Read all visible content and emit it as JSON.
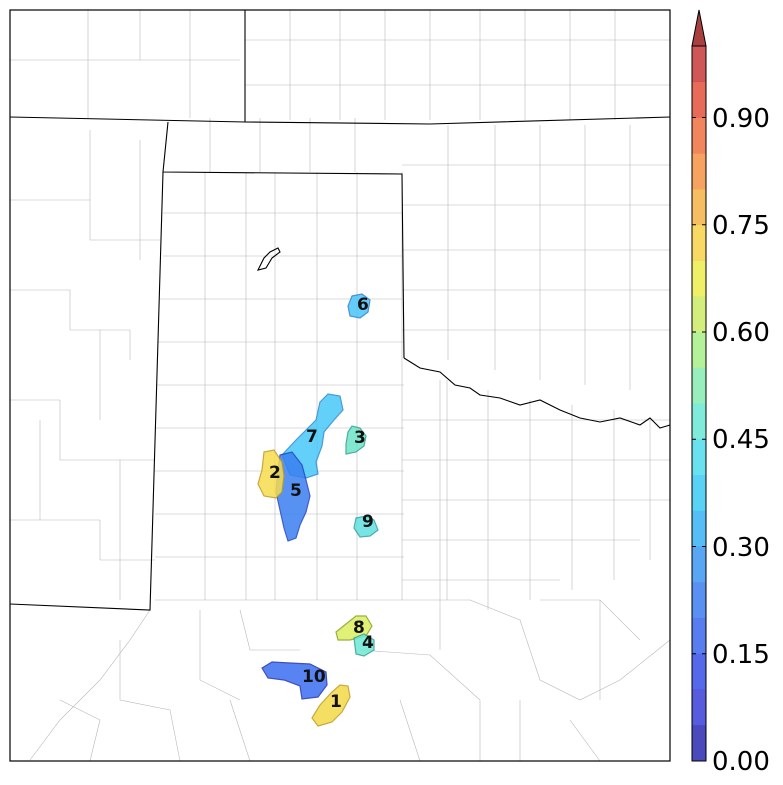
{
  "colorbar": {
    "ticks": [
      "0.00",
      "0.15",
      "0.30",
      "0.45",
      "0.60",
      "0.75",
      "0.90"
    ],
    "tick_values": [
      0.0,
      0.15,
      0.3,
      0.45,
      0.6,
      0.75,
      0.9
    ],
    "min": 0.0,
    "max": 1.0,
    "extend": "max",
    "levels": 20,
    "colors": [
      "#2a2ab0",
      "#3a3ed8",
      "#3650e8",
      "#3a66ec",
      "#3c7cf0",
      "#3c96f2",
      "#38b2f4",
      "#3ccaf4",
      "#50dcec",
      "#6ae8d4",
      "#86ecb2",
      "#a8ee86",
      "#cceb66",
      "#ecec4e",
      "#f6d248",
      "#f6b246",
      "#f49244",
      "#ee7040",
      "#e4503c",
      "#c83a3a"
    ],
    "arrow_color": "#a84040"
  },
  "objects": [
    {
      "id": "1",
      "value": 0.66
    },
    {
      "id": "2",
      "value": 0.69
    },
    {
      "id": "3",
      "value": 0.44
    },
    {
      "id": "4",
      "value": 0.4
    },
    {
      "id": "5",
      "value": 0.21
    },
    {
      "id": "6",
      "value": 0.31
    },
    {
      "id": "7",
      "value": 0.34
    },
    {
      "id": "8",
      "value": 0.59
    },
    {
      "id": "9",
      "value": 0.39
    },
    {
      "id": "10",
      "value": 0.2
    }
  ]
}
